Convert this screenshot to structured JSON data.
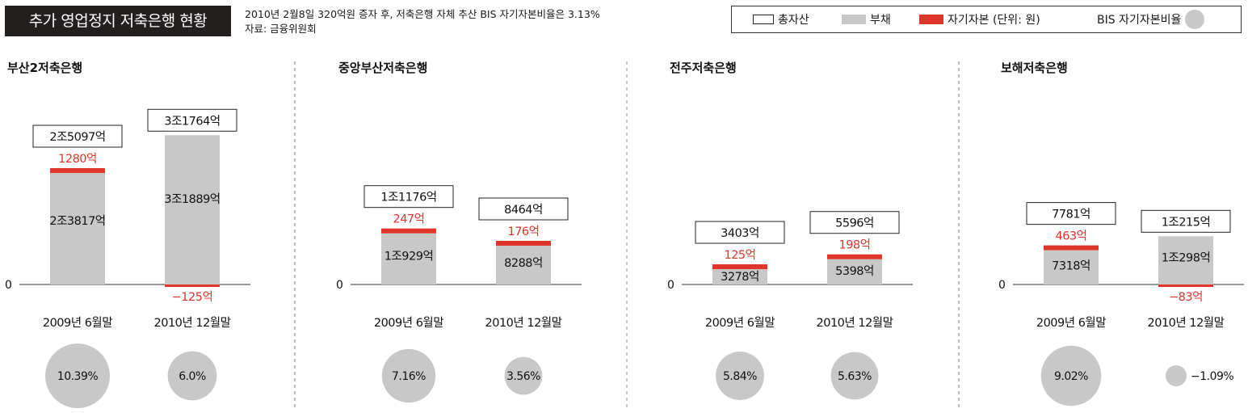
{
  "header": {
    "title": "추가 영업정지 저축은행 현황",
    "note": "2010년 2월8일 320억원 증자 후, 저축은행 자체 추산 BIS 자기자본비율은  3.13%",
    "source": "자료: 금융위원회"
  },
  "legend": {
    "total": "총자산",
    "debt": "부채",
    "capital": "자기자본 (단위: 원)",
    "bis": "BIS 자기자본비율"
  },
  "colors": {
    "debt": "#c8c8c8",
    "capital": "#e0352b",
    "negative_text": "#e0352b",
    "bis_circle": "#c8c8c8"
  },
  "chart_data": [
    {
      "type": "bar",
      "title": "부산2저축은행",
      "zero_label": "0",
      "categories": [
        "2009년 6월말",
        "2010년 12월말"
      ],
      "total_label": [
        "2조5097억",
        "3조1764억"
      ],
      "debt_label": [
        "2조3817억",
        "3조1889억"
      ],
      "capital_label": [
        "1280억",
        "−125억"
      ],
      "bis_label": [
        "10.39%",
        "6.0%"
      ],
      "total": [
        25097,
        31764
      ],
      "debt": [
        23817,
        31889
      ],
      "capital": [
        1280,
        -125
      ],
      "bis": [
        10.39,
        6.0
      ]
    },
    {
      "type": "bar",
      "title": "중앙부산저축은행",
      "zero_label": "0",
      "categories": [
        "2009년 6월말",
        "2010년 12월말"
      ],
      "total_label": [
        "1조1176억",
        "8464억"
      ],
      "debt_label": [
        "1조929억",
        "8288억"
      ],
      "capital_label": [
        "247억",
        "176억"
      ],
      "bis_label": [
        "7.16%",
        "3.56%"
      ],
      "total": [
        11176,
        8464
      ],
      "debt": [
        10929,
        8288
      ],
      "capital": [
        247,
        176
      ],
      "bis": [
        7.16,
        3.56
      ]
    },
    {
      "type": "bar",
      "title": "전주저축은행",
      "zero_label": "0",
      "categories": [
        "2009년 6월말",
        "2010년 12월말"
      ],
      "total_label": [
        "3403억",
        "5596억"
      ],
      "debt_label": [
        "3278억",
        "5398억"
      ],
      "capital_label": [
        "125억",
        "198억"
      ],
      "bis_label": [
        "5.84%",
        "5.63%"
      ],
      "total": [
        3403,
        5596
      ],
      "debt": [
        3278,
        5398
      ],
      "capital": [
        125,
        198
      ],
      "bis": [
        5.84,
        5.63
      ]
    },
    {
      "type": "bar",
      "title": "보해저축은행",
      "zero_label": "0",
      "categories": [
        "2009년 6월말",
        "2010년 12월말"
      ],
      "total_label": [
        "7781억",
        "1조215억"
      ],
      "debt_label": [
        "7318억",
        "1조298억"
      ],
      "capital_label": [
        "463억",
        "−83억"
      ],
      "bis_label": [
        "9.02%",
        "−1.09%"
      ],
      "total": [
        7781,
        10215
      ],
      "debt": [
        7318,
        10298
      ],
      "capital": [
        463,
        -83
      ],
      "bis": [
        9.02,
        -1.09
      ]
    }
  ]
}
